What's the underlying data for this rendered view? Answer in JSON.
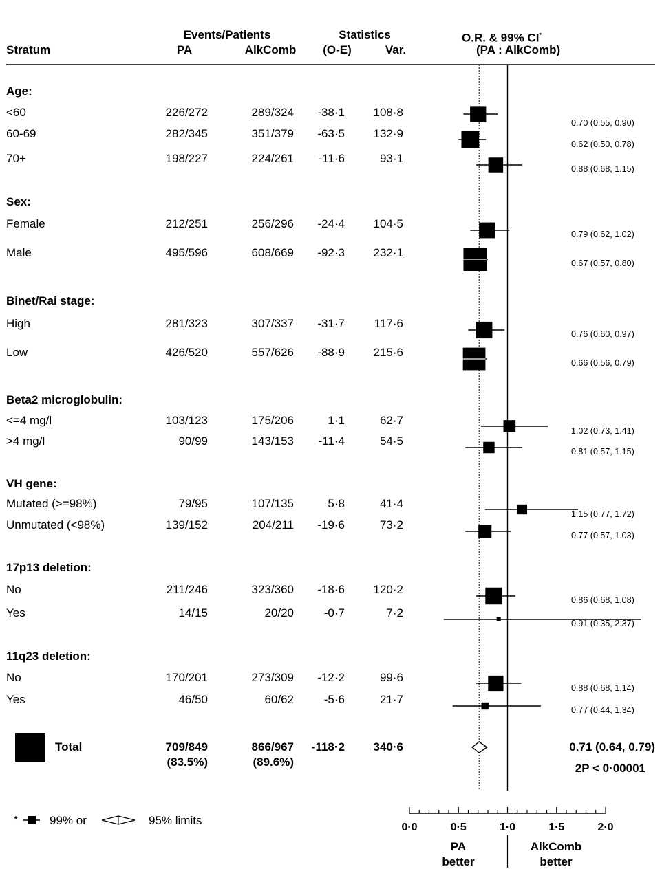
{
  "header": {
    "stratum": "Stratum",
    "events_patients": "Events/Patients",
    "pa": "PA",
    "alkcomb": "AlkComb",
    "statistics": "Statistics",
    "o_e": "(O-E)",
    "var": "Var.",
    "or_title": "O.R. & 99% CI",
    "or_star": "*",
    "or_sub": "(PA : AlkComb)"
  },
  "groups": [
    {
      "title": "Age:",
      "rows": [
        {
          "label": "<60",
          "pa": "226/272",
          "alk": "289/324",
          "oe": "-38·1",
          "var": "108·8",
          "ci": "0.70 (0.55, 0.90)"
        },
        {
          "label": "60-69",
          "pa": "282/345",
          "alk": "351/379",
          "oe": "-63·5",
          "var": "132·9",
          "ci": "0.62 (0.50, 0.78)"
        },
        {
          "label": "70+",
          "pa": "198/227",
          "alk": "224/261",
          "oe": "-11·6",
          "var": "93·1",
          "ci": "0.88 (0.68, 1.15)"
        }
      ]
    },
    {
      "title": "Sex:",
      "rows": [
        {
          "label": "Female",
          "pa": "212/251",
          "alk": "256/296",
          "oe": "-24·4",
          "var": "104·5",
          "ci": "0.79 (0.62, 1.02)"
        },
        {
          "label": "Male",
          "pa": "495/596",
          "alk": "608/669",
          "oe": "-92·3",
          "var": "232·1",
          "ci": "0.67 (0.57, 0.80)"
        }
      ]
    },
    {
      "title": "Binet/Rai stage:",
      "rows": [
        {
          "label": "High",
          "pa": "281/323",
          "alk": "307/337",
          "oe": "-31·7",
          "var": "117·6",
          "ci": "0.76 (0.60, 0.97)"
        },
        {
          "label": "Low",
          "pa": "426/520",
          "alk": "557/626",
          "oe": "-88·9",
          "var": "215·6",
          "ci": "0.66 (0.56, 0.79)"
        }
      ]
    },
    {
      "title": "Beta2 microglobulin:",
      "rows": [
        {
          "label": "<=4 mg/l",
          "pa": "103/123",
          "alk": "175/206",
          "oe": "1·1",
          "var": "62·7",
          "ci": "1.02 (0.73, 1.41)"
        },
        {
          "label": ">4 mg/l",
          "pa": "90/99",
          "alk": "143/153",
          "oe": "-11·4",
          "var": "54·5",
          "ci": "0.81 (0.57, 1.15)"
        }
      ]
    },
    {
      "title": "VH gene:",
      "rows": [
        {
          "label": "Mutated (>=98%)",
          "pa": "79/95",
          "alk": "107/135",
          "oe": "5·8",
          "var": "41·4",
          "ci": "1.15 (0.77, 1.72)"
        },
        {
          "label": "Unmutated (<98%)",
          "pa": "139/152",
          "alk": "204/211",
          "oe": "-19·6",
          "var": "73·2",
          "ci": "0.77 (0.57, 1.03)"
        }
      ]
    },
    {
      "title": "17p13 deletion:",
      "rows": [
        {
          "label": "No",
          "pa": "211/246",
          "alk": "323/360",
          "oe": "-18·6",
          "var": "120·2",
          "ci": "0.86 (0.68, 1.08)"
        },
        {
          "label": "Yes",
          "pa": "14/15",
          "alk": "20/20",
          "oe": "-0·7",
          "var": "7·2",
          "ci": "0.91 (0.35, 2.37)"
        }
      ]
    },
    {
      "title": "11q23 deletion:",
      "rows": [
        {
          "label": "No",
          "pa": "170/201",
          "alk": "273/309",
          "oe": "-12·2",
          "var": "99·6",
          "ci": "0.88 (0.68, 1.14)"
        },
        {
          "label": "Yes",
          "pa": "46/50",
          "alk": "60/62",
          "oe": "-5·6",
          "var": "21·7",
          "ci": "0.77 (0.44, 1.34)"
        }
      ]
    }
  ],
  "total": {
    "label": "Total",
    "pa": "709/849",
    "pa_pct": "(83.5%)",
    "alk": "866/967",
    "alk_pct": "(89.6%)",
    "oe": "-118·2",
    "var": "340·6",
    "ci": "0.71 (0.64, 0.79)",
    "p": "2P < 0·00001"
  },
  "footnote": {
    "star": "*",
    "limits99": "99% or",
    "limits95": "95% limits"
  },
  "axis": {
    "ticks": [
      "0·0",
      "0·5",
      "1·0",
      "1·5",
      "2·0"
    ],
    "left_label": [
      "PA",
      "better"
    ],
    "right_label": [
      "AlkComb",
      "better"
    ]
  },
  "chart_data": {
    "type": "forest",
    "title": "O.R. & 99% CI* (PA : AlkComb)",
    "xlabel": "",
    "xlim": [
      0,
      2
    ],
    "reference_line": 1.0,
    "overall_or": 0.71,
    "categories": [
      "<60",
      "60-69",
      "70+",
      "Female",
      "Male",
      "High",
      "Low",
      "<=4 mg/l",
      ">4 mg/l",
      "Mutated (>=98%)",
      "Unmutated (<98%)",
      "17p13 No",
      "17p13 Yes",
      "11q23 No",
      "11q23 Yes"
    ],
    "or": [
      0.7,
      0.62,
      0.88,
      0.79,
      0.67,
      0.76,
      0.66,
      1.02,
      0.81,
      1.15,
      0.77,
      0.86,
      0.91,
      0.88,
      0.77
    ],
    "lower": [
      0.55,
      0.5,
      0.68,
      0.62,
      0.57,
      0.6,
      0.56,
      0.73,
      0.57,
      0.77,
      0.57,
      0.68,
      0.35,
      0.68,
      0.44
    ],
    "upper": [
      0.9,
      0.78,
      1.15,
      1.02,
      0.8,
      0.97,
      0.79,
      1.41,
      1.15,
      1.72,
      1.03,
      1.08,
      2.37,
      1.14,
      1.34
    ],
    "variance": [
      108.8,
      132.9,
      93.1,
      104.5,
      232.1,
      117.6,
      215.6,
      62.7,
      54.5,
      41.4,
      73.2,
      120.2,
      7.2,
      99.6,
      21.7
    ],
    "total": {
      "or": 0.71,
      "lower95": 0.64,
      "upper95": 0.79
    }
  }
}
